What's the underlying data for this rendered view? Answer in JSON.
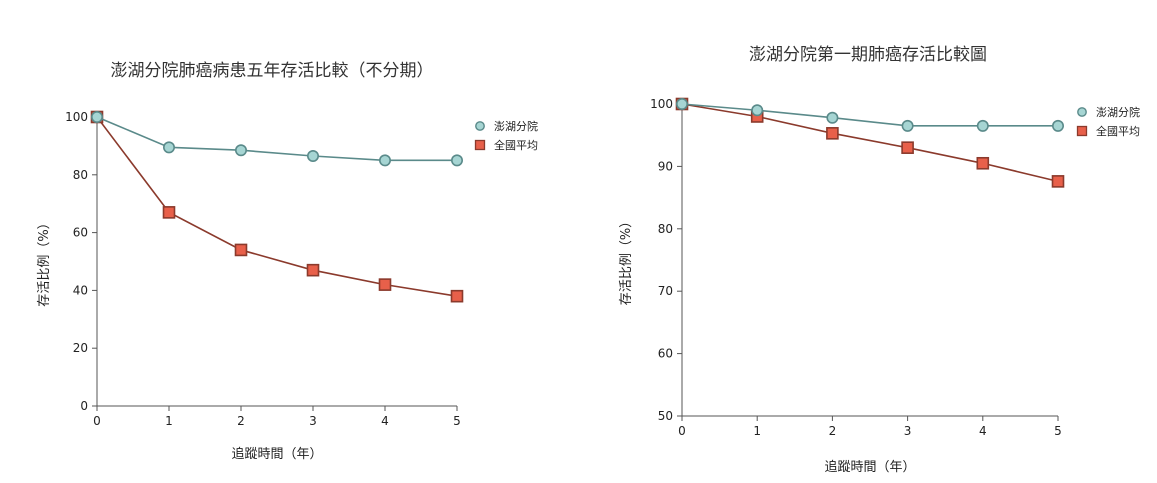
{
  "colors": {
    "penghu": "#a6d5d3",
    "penghu_stroke": "#5a8a8a",
    "penghu_line": "#5a8a8a",
    "national": "#e8604a",
    "national_stroke": "#8b3a2c",
    "national_line": "#8b3a2c"
  },
  "chart_data": [
    {
      "type": "line",
      "title": "澎湖分院肺癌病患五年存活比較（不分期）",
      "xlabel": "追蹤時間（年）",
      "ylabel": "存活比例（%）",
      "x": [
        0,
        1,
        2,
        3,
        4,
        5
      ],
      "ylim": [
        0,
        100
      ],
      "yticks": [
        0,
        20,
        40,
        60,
        80,
        100
      ],
      "grid": false,
      "legend": "top-right",
      "series": [
        {
          "name": "澎湖分院",
          "marker": "circle",
          "values": [
            100,
            89.5,
            88.5,
            86.5,
            85,
            85
          ]
        },
        {
          "name": "全國平均",
          "marker": "square",
          "values": [
            100,
            67,
            54,
            47,
            42,
            38
          ]
        }
      ]
    },
    {
      "type": "line",
      "title": "澎湖分院第一期肺癌存活比較圖",
      "xlabel": "追蹤時間（年）",
      "ylabel": "存活比例（%）",
      "x": [
        0,
        1,
        2,
        3,
        4,
        5
      ],
      "ylim": [
        50,
        100
      ],
      "yticks": [
        50,
        60,
        70,
        80,
        90,
        100
      ],
      "grid": false,
      "legend": "top-right",
      "series": [
        {
          "name": "澎湖分院",
          "marker": "circle",
          "values": [
            100,
            99,
            97.8,
            96.5,
            96.5,
            96.5
          ]
        },
        {
          "name": "全國平均",
          "marker": "square",
          "values": [
            100,
            98,
            95.3,
            93,
            90.5,
            87.6
          ]
        }
      ]
    }
  ]
}
